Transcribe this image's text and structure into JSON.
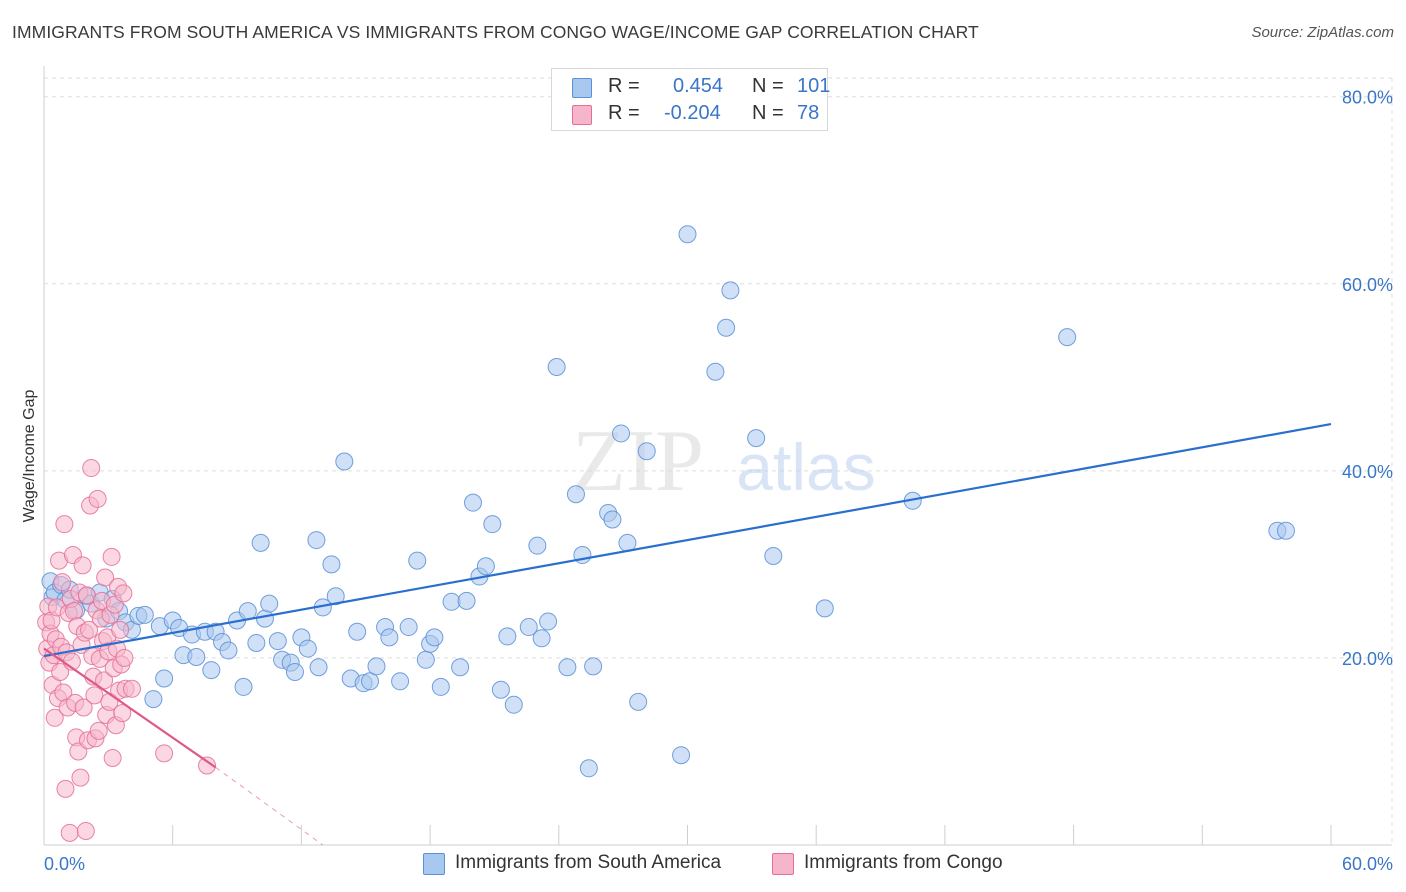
{
  "header": {
    "title": "IMMIGRANTS FROM SOUTH AMERICA VS IMMIGRANTS FROM CONGO WAGE/INCOME GAP CORRELATION CHART",
    "source": "Source: ZipAtlas.com"
  },
  "legend": {
    "series1": {
      "r_label": "R =",
      "r_value": "0.454",
      "n_label": "N =",
      "n_value": "101"
    },
    "series2": {
      "r_label": "R =",
      "r_value": "-0.204",
      "n_label": "N =",
      "n_value": "78"
    }
  },
  "watermark": {
    "zip": "ZIP",
    "atlas": "atlas"
  },
  "colors": {
    "blue_fill": "#a9c8f0",
    "blue_stroke": "#5b8fd6",
    "blue_line": "#2a6fd0",
    "pink_fill": "#f5b6cb",
    "pink_stroke": "#e56f98",
    "pink_line": "#e0578a",
    "axis_text": "#3a76c8",
    "grid": "#dddddd"
  },
  "chart_data": {
    "type": "scatter",
    "title": "IMMIGRANTS FROM SOUTH AMERICA VS IMMIGRANTS FROM CONGO WAGE/INCOME GAP CORRELATION CHART",
    "xlabel": "",
    "ylabel": "Wage/Income Gap",
    "xlim": [
      0,
      60
    ],
    "ylim": [
      0,
      82
    ],
    "x_tick_labels": [
      "0.0%",
      "60.0%"
    ],
    "y_ticks": [
      20,
      40,
      60,
      80
    ],
    "y_tick_labels": [
      "20.0%",
      "40.0%",
      "60.0%",
      "80.0%"
    ],
    "legend_position": "top-center",
    "series": [
      {
        "name": "Immigrants from South America",
        "r": 0.454,
        "n": 101,
        "trend": {
          "x": [
            0,
            60
          ],
          "y": [
            20.2,
            45.0
          ]
        },
        "points": [
          [
            0.3,
            28.2
          ],
          [
            0.4,
            26.5
          ],
          [
            0.5,
            27.0
          ],
          [
            0.8,
            27.8
          ],
          [
            1.0,
            26.2
          ],
          [
            1.2,
            27.3
          ],
          [
            1.5,
            25.1
          ],
          [
            2.0,
            26.6
          ],
          [
            2.2,
            25.8
          ],
          [
            2.6,
            27.0
          ],
          [
            2.9,
            24.2
          ],
          [
            3.2,
            26.3
          ],
          [
            3.5,
            25.0
          ],
          [
            3.8,
            23.8
          ],
          [
            4.1,
            23.0
          ],
          [
            4.4,
            24.5
          ],
          [
            4.7,
            24.6
          ],
          [
            5.1,
            15.6
          ],
          [
            5.4,
            23.4
          ],
          [
            5.6,
            17.8
          ],
          [
            6.0,
            24.0
          ],
          [
            6.3,
            23.2
          ],
          [
            6.5,
            20.3
          ],
          [
            6.9,
            22.5
          ],
          [
            7.1,
            20.1
          ],
          [
            7.5,
            22.8
          ],
          [
            7.8,
            18.7
          ],
          [
            8.0,
            22.8
          ],
          [
            8.3,
            21.7
          ],
          [
            8.6,
            20.8
          ],
          [
            9.0,
            24.0
          ],
          [
            9.3,
            16.9
          ],
          [
            9.5,
            25.0
          ],
          [
            9.9,
            21.6
          ],
          [
            10.1,
            32.3
          ],
          [
            10.3,
            24.2
          ],
          [
            10.5,
            25.8
          ],
          [
            10.9,
            21.8
          ],
          [
            11.1,
            19.8
          ],
          [
            11.5,
            19.5
          ],
          [
            11.7,
            18.5
          ],
          [
            12.0,
            22.2
          ],
          [
            12.3,
            21.0
          ],
          [
            12.7,
            32.6
          ],
          [
            12.8,
            19.0
          ],
          [
            13.0,
            25.4
          ],
          [
            13.4,
            30.0
          ],
          [
            13.6,
            26.6
          ],
          [
            14.0,
            41.0
          ],
          [
            14.3,
            17.8
          ],
          [
            14.6,
            22.8
          ],
          [
            14.9,
            17.3
          ],
          [
            15.2,
            17.5
          ],
          [
            15.5,
            19.1
          ],
          [
            15.9,
            23.3
          ],
          [
            16.1,
            22.2
          ],
          [
            16.6,
            17.5
          ],
          [
            17.0,
            23.3
          ],
          [
            17.4,
            30.4
          ],
          [
            17.8,
            19.8
          ],
          [
            18.0,
            21.5
          ],
          [
            18.2,
            22.2
          ],
          [
            18.5,
            16.9
          ],
          [
            19.0,
            26.0
          ],
          [
            19.4,
            19.0
          ],
          [
            19.7,
            26.1
          ],
          [
            20.0,
            36.6
          ],
          [
            20.3,
            28.7
          ],
          [
            20.6,
            29.8
          ],
          [
            20.9,
            34.3
          ],
          [
            21.3,
            16.6
          ],
          [
            21.6,
            22.3
          ],
          [
            21.9,
            15.0
          ],
          [
            22.6,
            23.3
          ],
          [
            23.0,
            32.0
          ],
          [
            23.2,
            22.1
          ],
          [
            23.5,
            23.9
          ],
          [
            23.9,
            51.1
          ],
          [
            24.4,
            19.0
          ],
          [
            24.8,
            37.5
          ],
          [
            25.1,
            31.0
          ],
          [
            25.4,
            8.2
          ],
          [
            25.6,
            19.1
          ],
          [
            26.3,
            35.5
          ],
          [
            26.5,
            34.8
          ],
          [
            26.9,
            44.0
          ],
          [
            27.2,
            32.3
          ],
          [
            27.7,
            15.3
          ],
          [
            28.1,
            42.1
          ],
          [
            29.7,
            9.6
          ],
          [
            30.0,
            65.3
          ],
          [
            31.3,
            50.6
          ],
          [
            31.8,
            55.3
          ],
          [
            32.0,
            59.3
          ],
          [
            33.2,
            43.5
          ],
          [
            34.0,
            30.9
          ],
          [
            36.4,
            25.3
          ],
          [
            40.5,
            36.8
          ],
          [
            47.7,
            54.3
          ],
          [
            57.5,
            33.6
          ],
          [
            57.9,
            33.6
          ]
        ]
      },
      {
        "name": "Immigrants from Congo",
        "r": -0.204,
        "n": 78,
        "trend": {
          "x": [
            0,
            8
          ],
          "y": [
            21.0,
            8.3
          ]
        },
        "trend_extension": {
          "x": [
            8,
            13
          ],
          "y": [
            8.3,
            0.0
          ]
        },
        "points": [
          [
            0.1,
            23.8
          ],
          [
            0.15,
            21.0
          ],
          [
            0.2,
            25.5
          ],
          [
            0.25,
            19.5
          ],
          [
            0.3,
            22.6
          ],
          [
            0.35,
            24.0
          ],
          [
            0.4,
            17.1
          ],
          [
            0.45,
            20.3
          ],
          [
            0.5,
            13.6
          ],
          [
            0.55,
            22.0
          ],
          [
            0.6,
            25.4
          ],
          [
            0.65,
            15.7
          ],
          [
            0.7,
            30.4
          ],
          [
            0.75,
            18.5
          ],
          [
            0.8,
            21.2
          ],
          [
            0.85,
            28.1
          ],
          [
            0.9,
            16.3
          ],
          [
            0.95,
            34.3
          ],
          [
            1.0,
            6.0
          ],
          [
            1.05,
            20.6
          ],
          [
            1.1,
            14.7
          ],
          [
            1.15,
            24.8
          ],
          [
            1.2,
            1.3
          ],
          [
            1.25,
            26.3
          ],
          [
            1.3,
            19.6
          ],
          [
            1.35,
            31.0
          ],
          [
            1.4,
            25.0
          ],
          [
            1.45,
            15.2
          ],
          [
            1.5,
            11.5
          ],
          [
            1.55,
            23.4
          ],
          [
            1.6,
            10.0
          ],
          [
            1.65,
            27.0
          ],
          [
            1.7,
            7.2
          ],
          [
            1.75,
            21.4
          ],
          [
            1.8,
            29.9
          ],
          [
            1.85,
            14.7
          ],
          [
            1.9,
            22.7
          ],
          [
            1.95,
            1.5
          ],
          [
            2.0,
            26.7
          ],
          [
            2.05,
            11.2
          ],
          [
            2.1,
            23.0
          ],
          [
            2.15,
            36.3
          ],
          [
            2.2,
            40.3
          ],
          [
            2.25,
            20.2
          ],
          [
            2.3,
            18.0
          ],
          [
            2.35,
            16.0
          ],
          [
            2.4,
            11.4
          ],
          [
            2.45,
            25.1
          ],
          [
            2.5,
            37.0
          ],
          [
            2.55,
            12.2
          ],
          [
            2.6,
            19.9
          ],
          [
            2.65,
            24.2
          ],
          [
            2.7,
            26.1
          ],
          [
            2.75,
            21.8
          ],
          [
            2.8,
            17.6
          ],
          [
            2.85,
            28.6
          ],
          [
            2.9,
            13.9
          ],
          [
            2.95,
            22.2
          ],
          [
            3.0,
            20.7
          ],
          [
            3.05,
            15.3
          ],
          [
            3.1,
            24.6
          ],
          [
            3.15,
            30.8
          ],
          [
            3.2,
            9.3
          ],
          [
            3.25,
            18.9
          ],
          [
            3.3,
            25.7
          ],
          [
            3.35,
            12.8
          ],
          [
            3.4,
            21.0
          ],
          [
            3.45,
            27.6
          ],
          [
            3.5,
            16.5
          ],
          [
            3.55,
            23.0
          ],
          [
            3.6,
            19.3
          ],
          [
            3.65,
            14.1
          ],
          [
            3.7,
            26.9
          ],
          [
            3.75,
            20.0
          ],
          [
            3.8,
            16.7
          ],
          [
            4.1,
            16.7
          ],
          [
            5.6,
            9.8
          ],
          [
            7.6,
            8.5
          ]
        ]
      }
    ]
  }
}
